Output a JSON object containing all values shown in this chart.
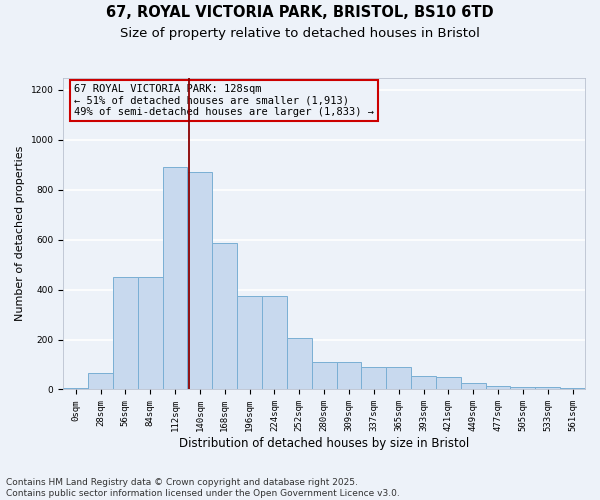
{
  "title_line1": "67, ROYAL VICTORIA PARK, BRISTOL, BS10 6TD",
  "title_line2": "Size of property relative to detached houses in Bristol",
  "xlabel": "Distribution of detached houses by size in Bristol",
  "ylabel": "Number of detached properties",
  "bar_color": "#c8d9ee",
  "bar_edge_color": "#7aafd4",
  "bar_heights": [
    5,
    65,
    450,
    450,
    890,
    870,
    585,
    375,
    375,
    205,
    110,
    110,
    90,
    90,
    55,
    50,
    25,
    12,
    8,
    10,
    5
  ],
  "bin_labels": [
    "0sqm",
    "28sqm",
    "56sqm",
    "84sqm",
    "112sqm",
    "140sqm",
    "168sqm",
    "196sqm",
    "224sqm",
    "252sqm",
    "280sqm",
    "309sqm",
    "337sqm",
    "365sqm",
    "393sqm",
    "421sqm",
    "449sqm",
    "477sqm",
    "505sqm",
    "533sqm",
    "561sqm"
  ],
  "ylim": [
    0,
    1250
  ],
  "yticks": [
    0,
    200,
    400,
    600,
    800,
    1000,
    1200
  ],
  "property_line_x": 4.55,
  "annotation_text": "67 ROYAL VICTORIA PARK: 128sqm\n← 51% of detached houses are smaller (1,913)\n49% of semi-detached houses are larger (1,833) →",
  "annotation_box_color": "#cc0000",
  "vline_color": "#8b0000",
  "footer_line1": "Contains HM Land Registry data © Crown copyright and database right 2025.",
  "footer_line2": "Contains public sector information licensed under the Open Government Licence v3.0.",
  "background_color": "#edf2f9",
  "grid_color": "#ffffff",
  "title_fontsize": 10.5,
  "subtitle_fontsize": 9.5,
  "ylabel_fontsize": 8,
  "xlabel_fontsize": 8.5,
  "tick_fontsize": 6.5,
  "annotation_fontsize": 7.5,
  "footer_fontsize": 6.5
}
